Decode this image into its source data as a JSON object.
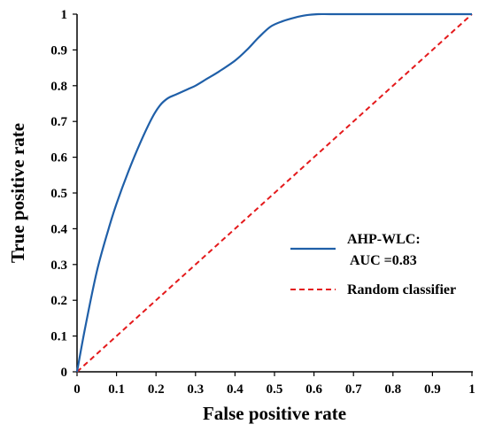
{
  "chart_data": {
    "type": "line",
    "title": "",
    "xlabel": "False positive rate",
    "ylabel": "True positive rate",
    "xlim": [
      0,
      1
    ],
    "ylim": [
      0,
      1
    ],
    "grid": false,
    "legend_position": "center-right",
    "x_ticks": [
      "0",
      "0.1",
      "0.2",
      "0.3",
      "0.4",
      "0.5",
      "0.6",
      "0.7",
      "0.8",
      "0.9",
      "1"
    ],
    "y_ticks": [
      "0",
      "0.1",
      "0.2",
      "0.3",
      "0.4",
      "0.5",
      "0.6",
      "0.7",
      "0.8",
      "0.9",
      "1"
    ],
    "series": [
      {
        "name": "AHP-WLC:",
        "name_line2": "AUC =0.83",
        "color": "#1f5fa8",
        "style": "solid",
        "x": [
          0,
          0.02,
          0.05,
          0.08,
          0.1,
          0.13,
          0.16,
          0.19,
          0.21,
          0.23,
          0.25,
          0.28,
          0.3,
          0.33,
          0.36,
          0.4,
          0.43,
          0.46,
          0.49,
          0.52,
          0.55,
          0.58,
          0.61,
          0.64,
          0.7,
          0.8,
          0.9,
          1.0
        ],
        "y": [
          0,
          0.12,
          0.28,
          0.4,
          0.47,
          0.56,
          0.64,
          0.71,
          0.745,
          0.765,
          0.775,
          0.79,
          0.8,
          0.82,
          0.84,
          0.87,
          0.9,
          0.935,
          0.965,
          0.98,
          0.99,
          0.997,
          1.0,
          1.0,
          1.0,
          1.0,
          1.0,
          1.0
        ]
      },
      {
        "name": "Random classifier",
        "color": "#e41a1c",
        "style": "dashed",
        "x": [
          0,
          1
        ],
        "y": [
          0,
          1
        ]
      }
    ]
  }
}
